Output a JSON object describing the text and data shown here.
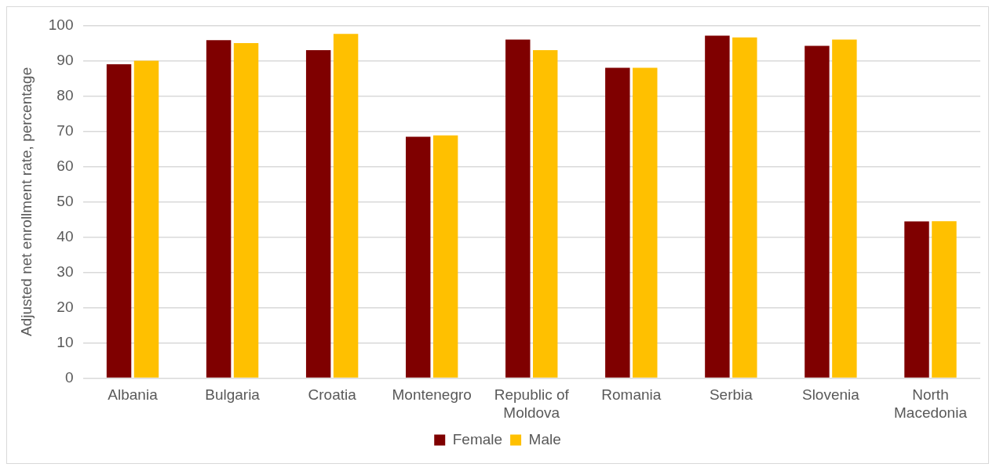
{
  "chart_data": {
    "type": "bar",
    "ylabel": "Adjusted net enrollment rate, percentage",
    "categories": [
      "Albania",
      "Bulgaria",
      "Croatia",
      "Montenegro",
      "Republic of Moldova",
      "Romania",
      "Serbia",
      "Slovenia",
      "North Macedonia"
    ],
    "series": [
      {
        "name": "Female",
        "color": "#7f0000",
        "values": [
          89,
          95.8,
          93,
          68.4,
          96,
          88,
          97.1,
          94.2,
          44.4
        ]
      },
      {
        "name": "Male",
        "color": "#ffc000",
        "values": [
          90,
          95,
          97.6,
          68.8,
          93,
          88,
          96.6,
          96,
          44.5
        ]
      }
    ],
    "ylim": [
      0,
      100
    ],
    "yticks": [
      0,
      10,
      20,
      30,
      40,
      50,
      60,
      70,
      80,
      90,
      100
    ],
    "grid": "y",
    "legend": "bottom"
  }
}
